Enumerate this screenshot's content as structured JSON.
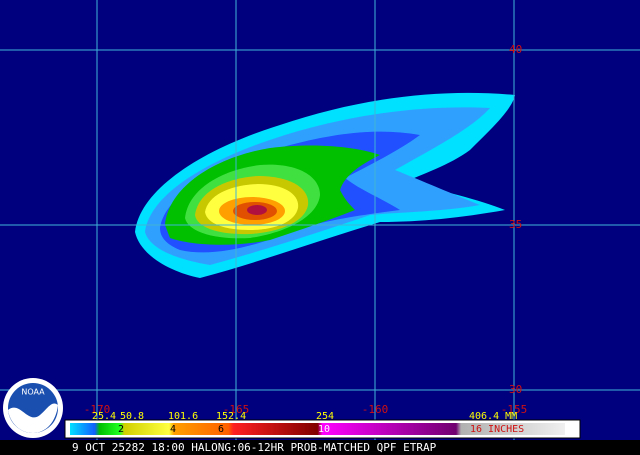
{
  "map": {
    "lat_labels": [
      "40",
      "35",
      "30"
    ],
    "lon_labels": [
      "-170",
      "-165",
      "-160",
      "-155"
    ],
    "colorbar": {
      "mm_labels": [
        "25.4",
        "50.8",
        "101.6",
        "152.4",
        "254",
        "406.4 MM"
      ],
      "inch_labels": [
        "2",
        "4",
        "6",
        "10",
        "16 INCHES"
      ]
    },
    "caption": "9 OCT 25282 18:00 HALONG:06-12HR PROB-MATCHED QPF ETRAP",
    "logo": "NOAA"
  }
}
